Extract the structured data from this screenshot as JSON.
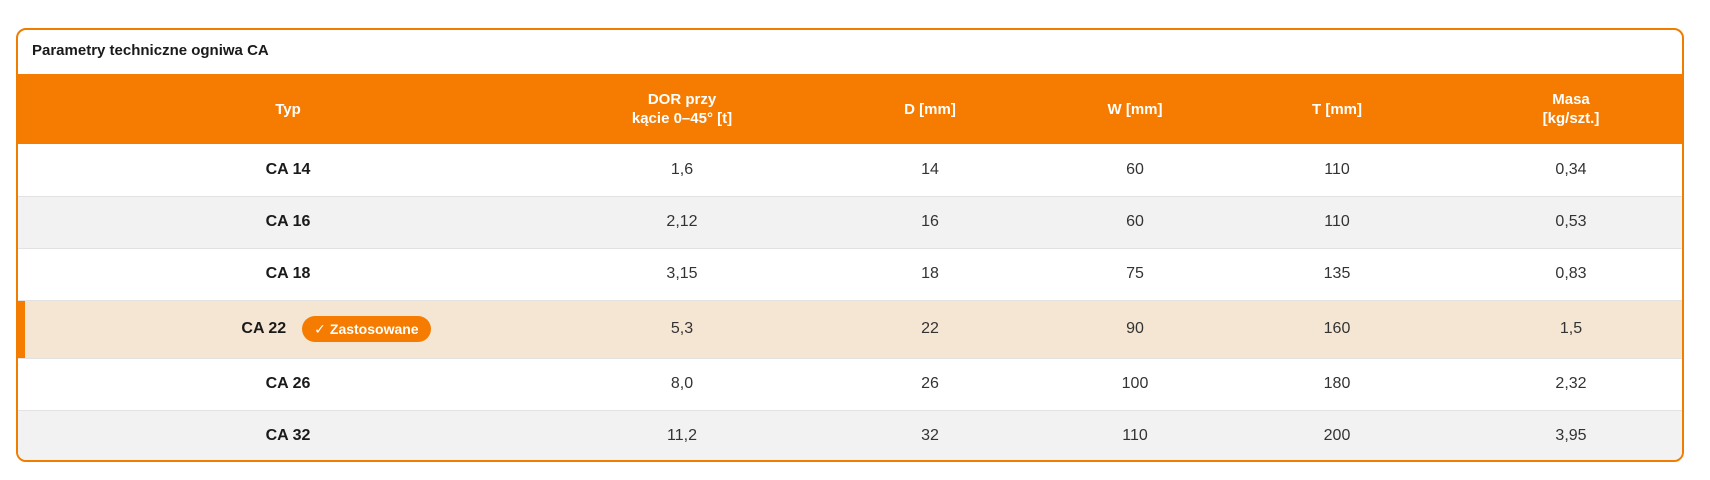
{
  "card": {
    "title": "Parametry techniczne ogniwa CA"
  },
  "table": {
    "headers": [
      "Typ",
      "DOR przy\nkącie 0–45° [t]",
      "D [mm]",
      "W [mm]",
      "T [mm]",
      "Masa\n[kg/szt.]"
    ],
    "rows": [
      {
        "type": "CA 14",
        "dor": "1,6",
        "d": "14",
        "w": "60",
        "t": "110",
        "mass": "0,34"
      },
      {
        "type": "CA 16",
        "dor": "2,12",
        "d": "16",
        "w": "60",
        "t": "110",
        "mass": "0,53"
      },
      {
        "type": "CA 18",
        "dor": "3,15",
        "d": "18",
        "w": "75",
        "t": "135",
        "mass": "0,83"
      },
      {
        "type": "CA 22",
        "dor": "5,3",
        "d": "22",
        "w": "90",
        "t": "160",
        "mass": "1,5"
      },
      {
        "type": "CA 26",
        "dor": "8,0",
        "d": "26",
        "w": "100",
        "t": "180",
        "mass": "2,32"
      },
      {
        "type": "CA 32",
        "dor": "11,2",
        "d": "32",
        "w": "110",
        "t": "200",
        "mass": "3,95"
      }
    ],
    "selected_row_index": 3,
    "badge": {
      "check": "✓",
      "label": "Zastosowane"
    }
  },
  "colors": {
    "accent": "#f57c00",
    "border": "#f07c00",
    "selected_row": "#f5e6d4",
    "stripe": "#f2f2f2"
  }
}
